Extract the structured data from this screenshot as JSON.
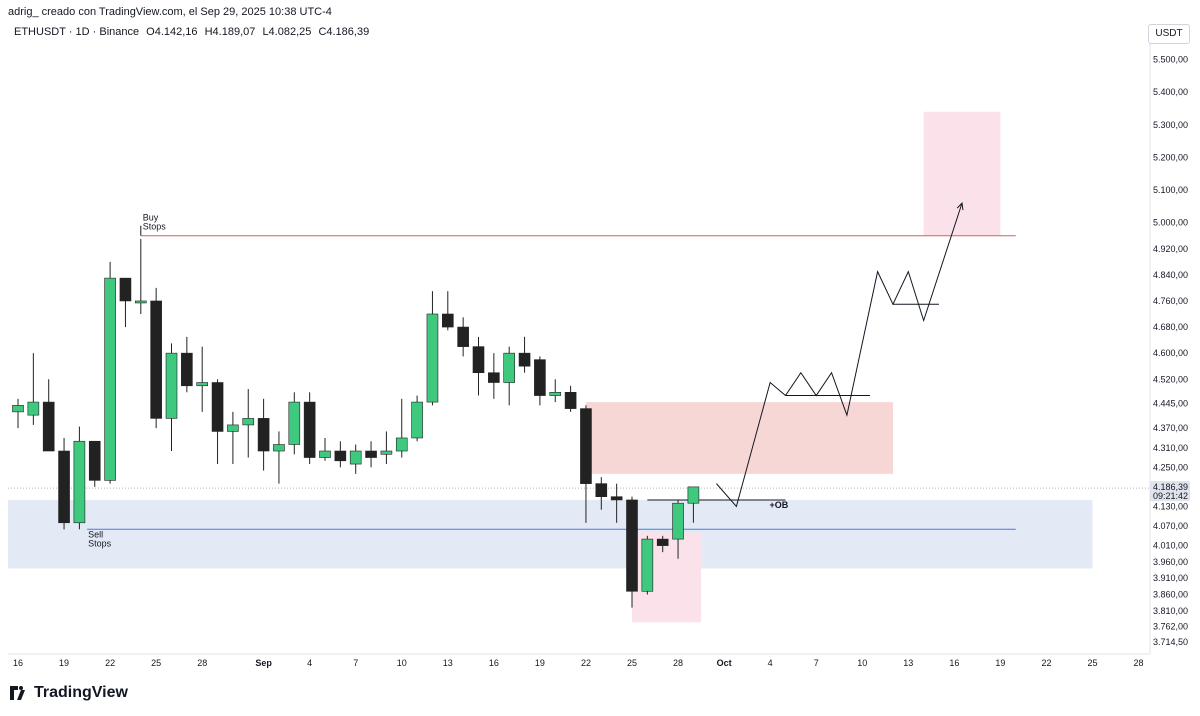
{
  "header": {
    "attribution": "adrig_ creado con TradingView.com, el Sep 29, 2025 10:38 UTC-4"
  },
  "symbol": {
    "name": "ETHUSDT · 1D · Binance",
    "open": "O4.142,16",
    "high": "H4.189,07",
    "low": "L4.082,25",
    "close": "C4.186,39"
  },
  "currency": "USDT",
  "footer": {
    "brand": "TradingView",
    "logo_icon": "tradingview-logo-icon"
  },
  "colors": {
    "bull": "#3fc97f",
    "bear": "#222222",
    "buy_stops_line": "#e05a5a",
    "sell_stops_line": "#4a7ae0",
    "supply_zone": "#f7d6d6",
    "demand_zone": "#e3eaf6",
    "target_zone": "#fbe1ea",
    "price_label_bg": "#e0e3eb"
  },
  "chart_data": {
    "type": "candlestick",
    "ylim": [
      3690,
      5560
    ],
    "y_ticks": [
      "5.500,00",
      "5.400,00",
      "5.300,00",
      "5.200,00",
      "5.100,00",
      "5.000,00",
      "4.920,00",
      "4.840,00",
      "4.760,00",
      "4.680,00",
      "4.600,00",
      "4.520,00",
      "4.445,00",
      "4.370,00",
      "4.310,00",
      "4.250,00",
      "4.130,00",
      "4.070,00",
      "4.010,00",
      "3.960,00",
      "3.910,00",
      "3.860,00",
      "3.810,00",
      "3.762,00",
      "3.714,50"
    ],
    "y_tick_values": [
      5500,
      5400,
      5300,
      5200,
      5100,
      5000,
      4920,
      4840,
      4760,
      4680,
      4600,
      4520,
      4445,
      4370,
      4310,
      4250,
      4130,
      4070,
      4010,
      3960,
      3910,
      3860,
      3810,
      3762,
      3714.5
    ],
    "x_labels": [
      "16",
      "19",
      "22",
      "25",
      "28",
      "Sep",
      "4",
      "7",
      "10",
      "13",
      "16",
      "19",
      "22",
      "25",
      "28",
      "Oct",
      "4",
      "7",
      "10",
      "13",
      "16",
      "19",
      "22",
      "25",
      "28"
    ],
    "x_label_days": [
      0,
      3,
      6,
      9,
      12,
      16,
      19,
      22,
      25,
      28,
      31,
      34,
      37,
      40,
      43,
      46,
      49,
      52,
      55,
      58,
      61,
      64,
      67,
      70,
      73
    ],
    "candles": [
      {
        "d": 0,
        "o": 4420,
        "h": 4460,
        "l": 4370,
        "c": 4440
      },
      {
        "d": 1,
        "o": 4410,
        "h": 4600,
        "l": 4380,
        "c": 4450
      },
      {
        "d": 2,
        "o": 4450,
        "h": 4520,
        "l": 4300,
        "c": 4300
      },
      {
        "d": 3,
        "o": 4300,
        "h": 4340,
        "l": 4060,
        "c": 4080
      },
      {
        "d": 4,
        "o": 4080,
        "h": 4375,
        "l": 4060,
        "c": 4330
      },
      {
        "d": 5,
        "o": 4330,
        "h": 4330,
        "l": 4190,
        "c": 4210
      },
      {
        "d": 6,
        "o": 4210,
        "h": 4880,
        "l": 4200,
        "c": 4830
      },
      {
        "d": 7,
        "o": 4830,
        "h": 4830,
        "l": 4680,
        "c": 4760
      },
      {
        "d": 8,
        "o": 4760,
        "h": 4950,
        "l": 4720,
        "c": 4760
      },
      {
        "d": 9,
        "o": 4760,
        "h": 4800,
        "l": 4370,
        "c": 4400
      },
      {
        "d": 10,
        "o": 4400,
        "h": 4630,
        "l": 4300,
        "c": 4600
      },
      {
        "d": 11,
        "o": 4600,
        "h": 4650,
        "l": 4480,
        "c": 4500
      },
      {
        "d": 12,
        "o": 4500,
        "h": 4620,
        "l": 4420,
        "c": 4510
      },
      {
        "d": 13,
        "o": 4510,
        "h": 4520,
        "l": 4260,
        "c": 4360
      },
      {
        "d": 14,
        "o": 4360,
        "h": 4420,
        "l": 4260,
        "c": 4380
      },
      {
        "d": 15,
        "o": 4380,
        "h": 4490,
        "l": 4280,
        "c": 4400
      },
      {
        "d": 16,
        "o": 4400,
        "h": 4460,
        "l": 4240,
        "c": 4300
      },
      {
        "d": 17,
        "o": 4300,
        "h": 4360,
        "l": 4200,
        "c": 4320
      },
      {
        "d": 18,
        "o": 4320,
        "h": 4480,
        "l": 4290,
        "c": 4450
      },
      {
        "d": 19,
        "o": 4450,
        "h": 4480,
        "l": 4260,
        "c": 4280
      },
      {
        "d": 20,
        "o": 4280,
        "h": 4340,
        "l": 4270,
        "c": 4300
      },
      {
        "d": 21,
        "o": 4300,
        "h": 4330,
        "l": 4250,
        "c": 4270
      },
      {
        "d": 22,
        "o": 4260,
        "h": 4320,
        "l": 4230,
        "c": 4300
      },
      {
        "d": 23,
        "o": 4300,
        "h": 4330,
        "l": 4250,
        "c": 4280
      },
      {
        "d": 24,
        "o": 4290,
        "h": 4360,
        "l": 4260,
        "c": 4300
      },
      {
        "d": 25,
        "o": 4300,
        "h": 4460,
        "l": 4280,
        "c": 4340
      },
      {
        "d": 26,
        "o": 4340,
        "h": 4470,
        "l": 4330,
        "c": 4450
      },
      {
        "d": 27,
        "o": 4450,
        "h": 4790,
        "l": 4440,
        "c": 4720
      },
      {
        "d": 28,
        "o": 4720,
        "h": 4790,
        "l": 4670,
        "c": 4680
      },
      {
        "d": 29,
        "o": 4680,
        "h": 4710,
        "l": 4590,
        "c": 4620
      },
      {
        "d": 30,
        "o": 4620,
        "h": 4650,
        "l": 4470,
        "c": 4540
      },
      {
        "d": 31,
        "o": 4540,
        "h": 4600,
        "l": 4460,
        "c": 4510
      },
      {
        "d": 32,
        "o": 4510,
        "h": 4620,
        "l": 4440,
        "c": 4600
      },
      {
        "d": 33,
        "o": 4600,
        "h": 4650,
        "l": 4540,
        "c": 4560
      },
      {
        "d": 34,
        "o": 4580,
        "h": 4590,
        "l": 4440,
        "c": 4470
      },
      {
        "d": 35,
        "o": 4470,
        "h": 4520,
        "l": 4450,
        "c": 4480
      },
      {
        "d": 36,
        "o": 4480,
        "h": 4500,
        "l": 4420,
        "c": 4430
      },
      {
        "d": 37,
        "o": 4430,
        "h": 4440,
        "l": 4080,
        "c": 4200
      },
      {
        "d": 38,
        "o": 4200,
        "h": 4220,
        "l": 4120,
        "c": 4160
      },
      {
        "d": 39,
        "o": 4160,
        "h": 4200,
        "l": 4080,
        "c": 4150
      },
      {
        "d": 40,
        "o": 4150,
        "h": 4160,
        "l": 3820,
        "c": 3870
      },
      {
        "d": 41,
        "o": 3870,
        "h": 4040,
        "l": 3860,
        "c": 4030
      },
      {
        "d": 42,
        "o": 4030,
        "h": 4040,
        "l": 3990,
        "c": 4010
      },
      {
        "d": 43,
        "o": 4030,
        "h": 4150,
        "l": 3970,
        "c": 4140
      },
      {
        "d": 44,
        "o": 4140,
        "h": 4190,
        "l": 4080,
        "c": 4190
      }
    ],
    "levels": [
      {
        "name": "Buy Stops",
        "value": 4960,
        "label": "Buy\nStops"
      },
      {
        "name": "Sell Stops",
        "value": 4060,
        "label": "Sell\nStops"
      }
    ],
    "zones": [
      {
        "name": "supply-zone",
        "d0": 37,
        "d1": 57,
        "y0": 4230,
        "y1": 4450
      },
      {
        "name": "demand-zone",
        "d0": -1,
        "d1": 70,
        "y0": 3940,
        "y1": 4150
      },
      {
        "name": "sweep-zone",
        "d0": 40,
        "d1": 44.5,
        "y0": 3775,
        "y1": 4050
      },
      {
        "name": "target-zone",
        "d0": 59,
        "d1": 64,
        "y0": 4960,
        "y1": 5340
      }
    ],
    "ob": {
      "label": "+OB",
      "value": 4150,
      "d0": 41,
      "d1": 50
    },
    "projection": [
      [
        45.5,
        4200
      ],
      [
        46.8,
        4130
      ],
      [
        49,
        4510
      ],
      [
        50,
        4470
      ],
      [
        51,
        4540
      ],
      [
        52,
        4470
      ],
      [
        53,
        4540
      ],
      [
        54,
        4410
      ],
      [
        56,
        4850
      ],
      [
        57,
        4750
      ],
      [
        58,
        4850
      ],
      [
        59,
        4700
      ],
      [
        61.5,
        5060
      ]
    ],
    "projection_guides": [
      {
        "d0": 50,
        "d1": 55.5,
        "y": 4470
      },
      {
        "d0": 57,
        "d1": 60,
        "y": 4750
      }
    ],
    "current_price": {
      "value": 4186.39,
      "label": "4.186,39",
      "countdown": "09:21:42"
    }
  }
}
